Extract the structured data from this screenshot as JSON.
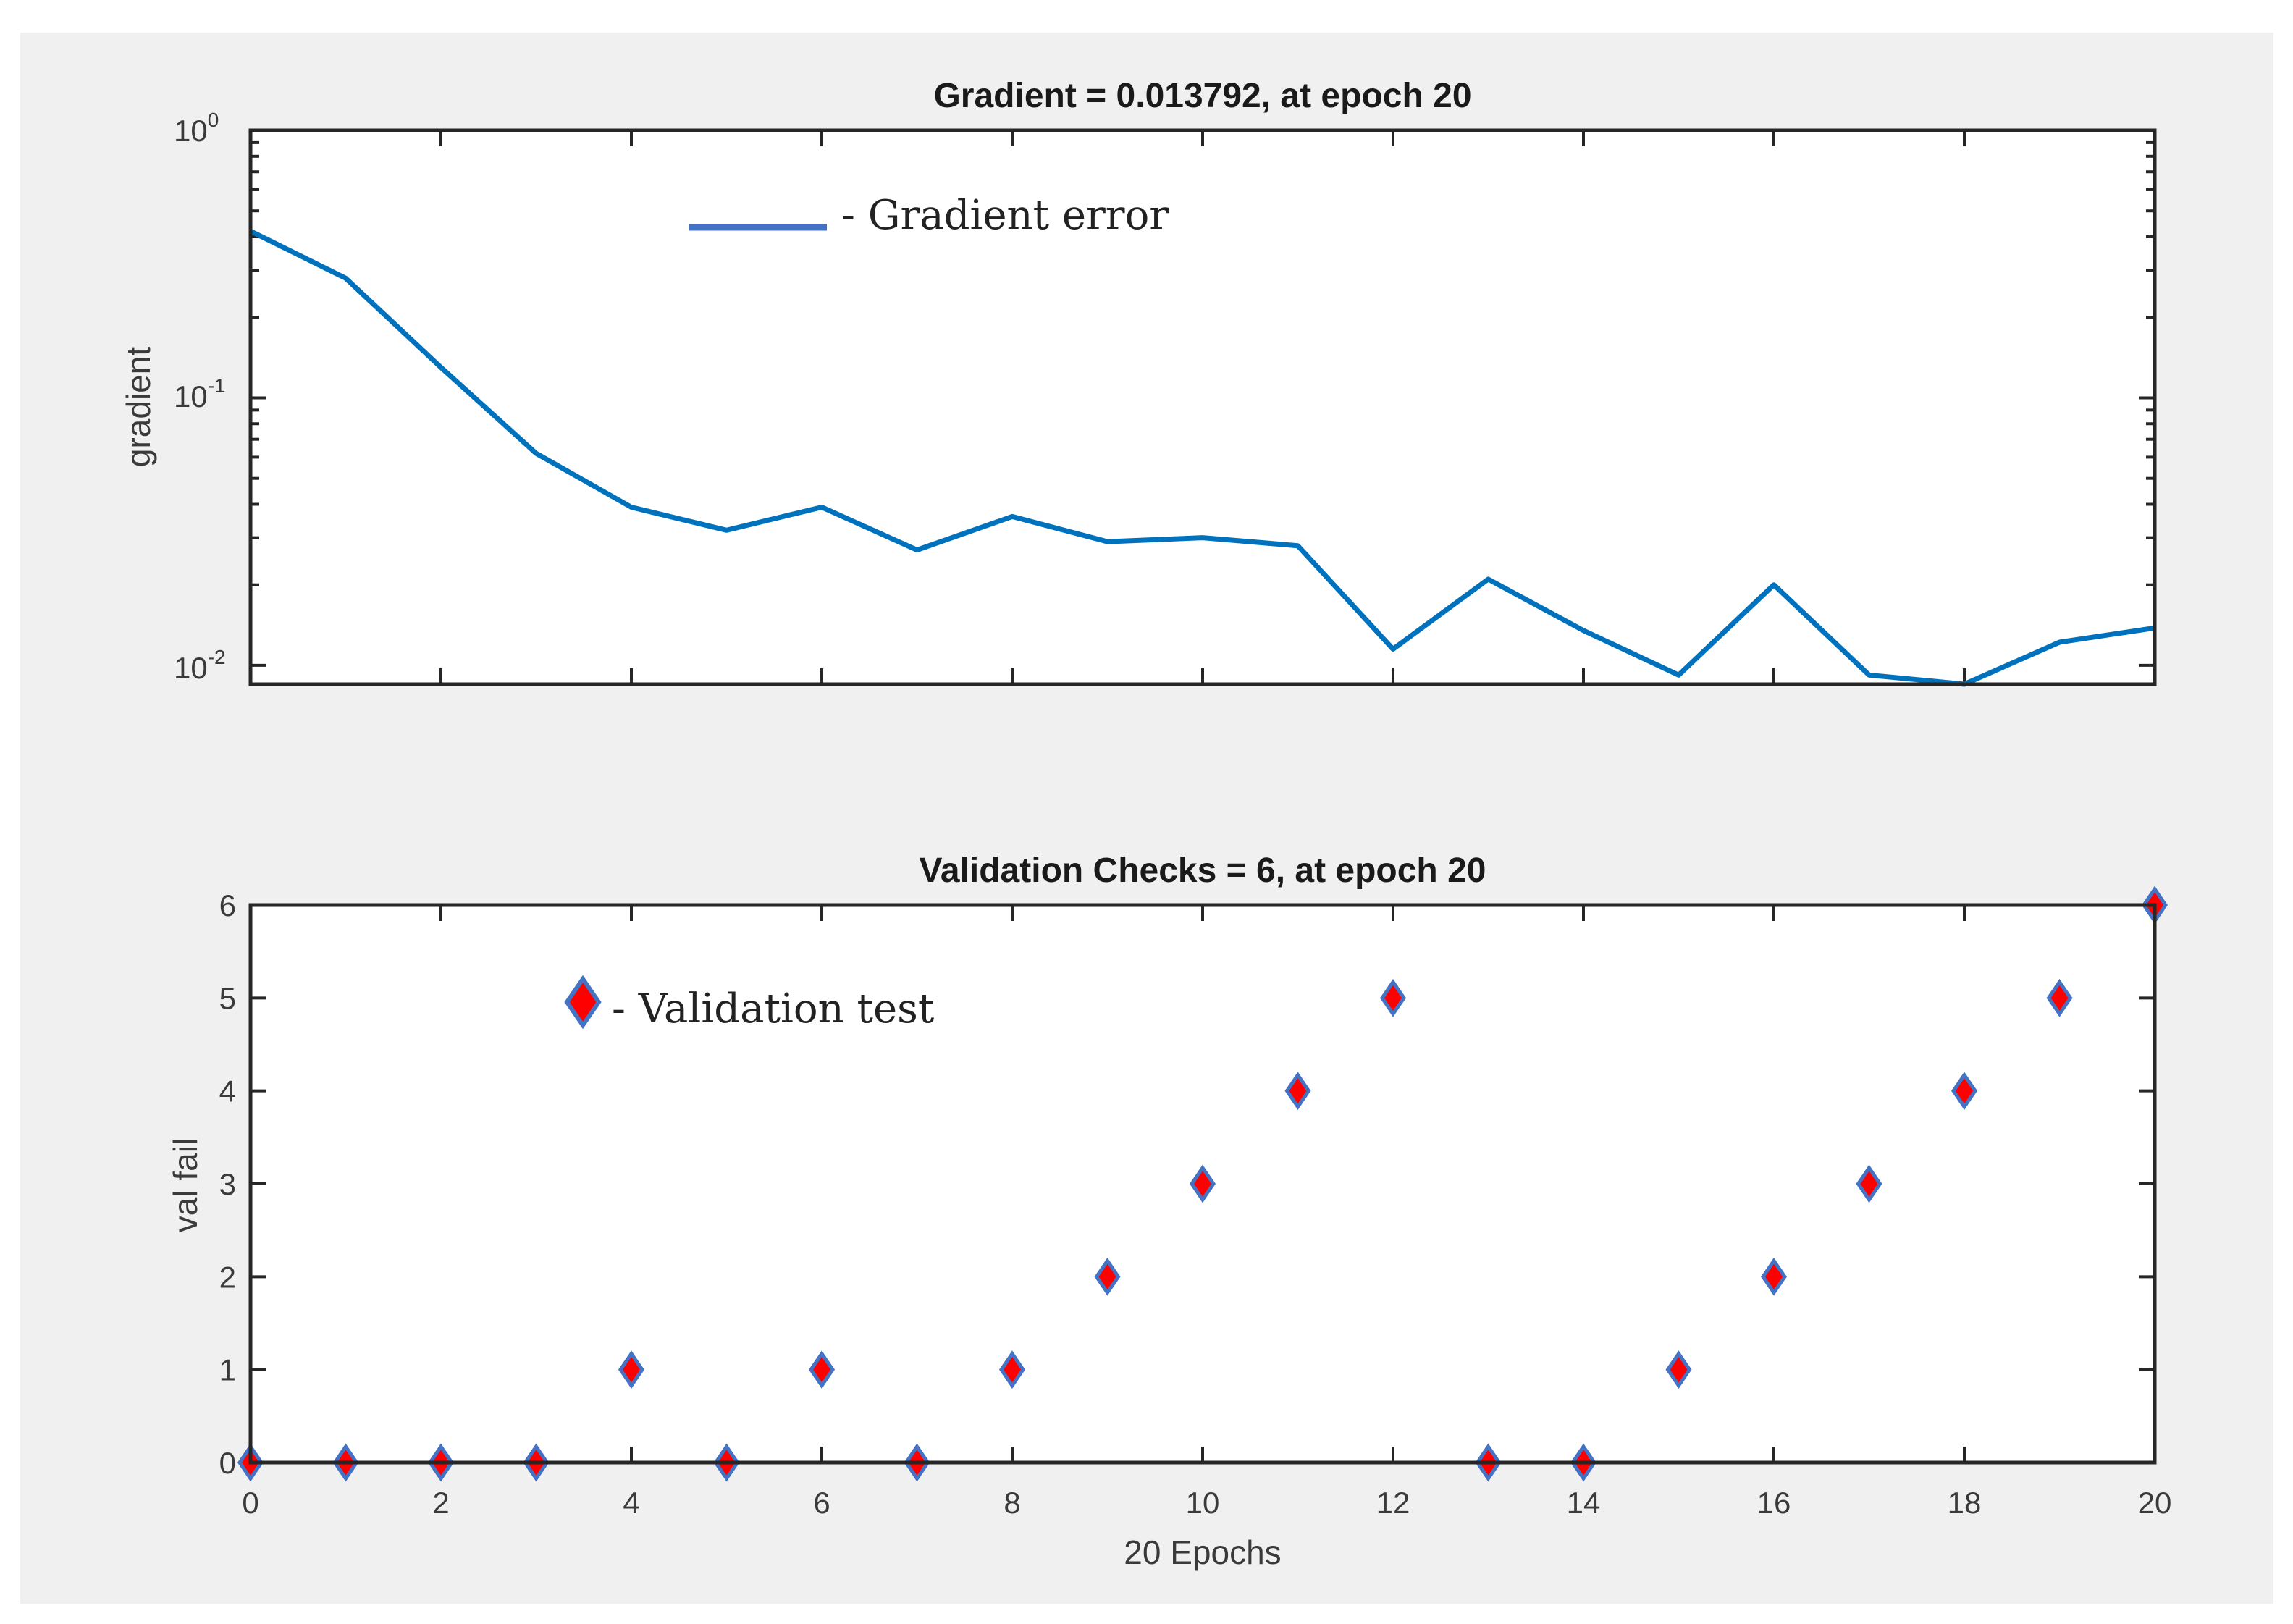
{
  "colors": {
    "background": "#f0f0f0",
    "plot_background": "#ffffff",
    "axis": "#262626",
    "gradient_line": "#0072bd",
    "legend_line": "#4472c4",
    "marker_fill": "#ff0000",
    "marker_edge": "#4472c4"
  },
  "chart_data": [
    {
      "type": "line",
      "title": "Gradient = 0.013792, at epoch 20",
      "xlabel": "",
      "ylabel": "gradient",
      "yscale": "log",
      "xlim": [
        0,
        20
      ],
      "ylim": [
        0.0085,
        1
      ],
      "yticks": [
        {
          "base": "10",
          "exp": "0",
          "value": 1
        },
        {
          "base": "10",
          "exp": "-1",
          "value": 0.1
        },
        {
          "base": "10",
          "exp": "-2",
          "value": 0.01
        }
      ],
      "x_tick_labels_shown": false,
      "grid": false,
      "legend_position": "top-center",
      "series": [
        {
          "name": "- Gradient error",
          "x": [
            0,
            1,
            2,
            3,
            4,
            5,
            6,
            7,
            8,
            9,
            10,
            11,
            12,
            13,
            14,
            15,
            16,
            17,
            18,
            19,
            20
          ],
          "y": [
            0.42,
            0.28,
            0.13,
            0.062,
            0.039,
            0.032,
            0.039,
            0.027,
            0.036,
            0.029,
            0.03,
            0.028,
            0.0115,
            0.021,
            0.0135,
            0.0092,
            0.02,
            0.0092,
            0.0085,
            0.0122,
            0.013792
          ]
        }
      ]
    },
    {
      "type": "scatter",
      "title": "Validation Checks = 6, at epoch 20",
      "xlabel": "20 Epochs",
      "ylabel": "val fail",
      "xlim": [
        0,
        20
      ],
      "ylim": [
        0,
        6
      ],
      "xticks": [
        "0",
        "2",
        "4",
        "6",
        "8",
        "10",
        "12",
        "14",
        "16",
        "18",
        "20"
      ],
      "yticks": [
        "0",
        "1",
        "2",
        "3",
        "4",
        "5",
        "6"
      ],
      "grid": false,
      "legend_position": "top-left",
      "series": [
        {
          "name": "- Validation test",
          "x": [
            0,
            1,
            2,
            3,
            4,
            5,
            6,
            7,
            8,
            9,
            10,
            11,
            12,
            13,
            14,
            15,
            16,
            17,
            18,
            19,
            20
          ],
          "y": [
            0,
            0,
            0,
            0,
            1,
            0,
            1,
            0,
            1,
            2,
            3,
            4,
            5,
            0,
            0,
            1,
            2,
            3,
            4,
            5,
            6
          ]
        }
      ]
    }
  ]
}
